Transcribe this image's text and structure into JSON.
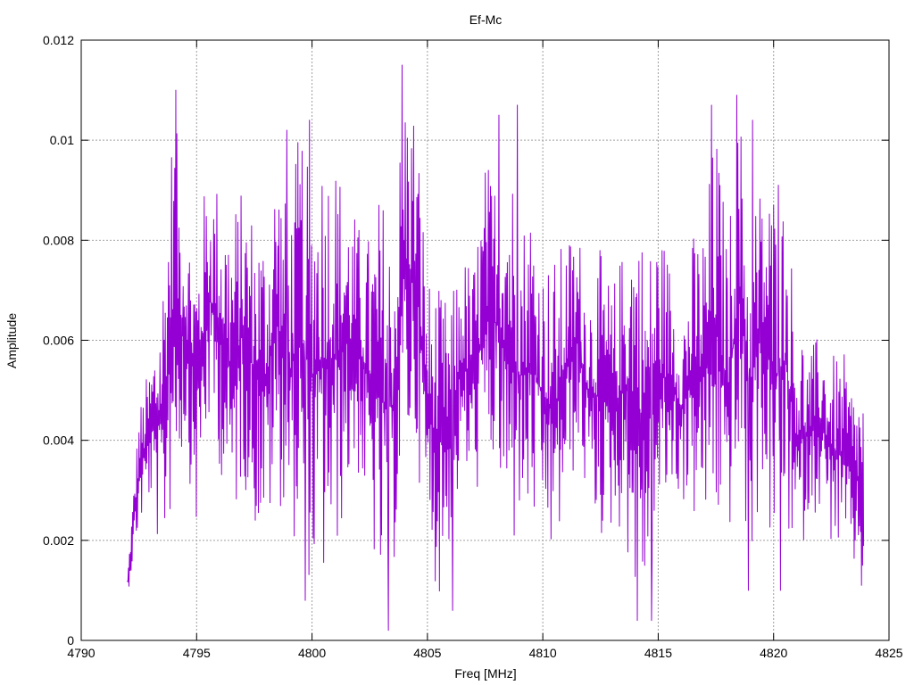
{
  "chart_data": {
    "type": "line",
    "title": "Ef-Mc",
    "xlabel": "Freq [MHz]",
    "ylabel": "Amplitude",
    "xlim": [
      4790,
      4825
    ],
    "ylim": [
      0,
      0.012
    ],
    "xticks": [
      4790,
      4795,
      4800,
      4805,
      4810,
      4815,
      4820,
      4825
    ],
    "xtick_labels": [
      "4790",
      "4795",
      "4800",
      "4805",
      "4810",
      "4815",
      "4820",
      "4825"
    ],
    "yticks": [
      0,
      0.002,
      0.004,
      0.006,
      0.008,
      0.01,
      0.012
    ],
    "ytick_labels": [
      "0",
      "0.002",
      "0.004",
      "0.006",
      "0.008",
      "0.01",
      "0.012"
    ],
    "grid": true,
    "line_color": "#9400d3",
    "series": [
      {
        "x_range": [
          4792.0,
          4823.9
        ],
        "envelope_x": [
          4792.0,
          4792.5,
          4793.0,
          4793.5,
          4794.0,
          4794.5,
          4795.0,
          4795.5,
          4796.0,
          4796.5,
          4797.0,
          4797.5,
          4798.0,
          4798.5,
          4799.0,
          4799.5,
          4800.0,
          4800.5,
          4801.0,
          4801.5,
          4802.0,
          4802.5,
          4803.0,
          4803.5,
          4804.0,
          4804.5,
          4805.0,
          4805.5,
          4806.0,
          4806.5,
          4807.0,
          4807.5,
          4808.0,
          4808.5,
          4809.0,
          4809.5,
          4810.0,
          4810.5,
          4811.0,
          4811.5,
          4812.0,
          4812.5,
          4813.0,
          4813.5,
          4814.0,
          4814.5,
          4815.0,
          4815.5,
          4816.0,
          4816.5,
          4817.0,
          4817.5,
          4818.0,
          4818.5,
          4819.0,
          4819.5,
          4820.0,
          4820.5,
          4821.0,
          4821.5,
          4822.0,
          4822.5,
          4823.0,
          4823.5,
          4823.9
        ],
        "upper": [
          0.0013,
          0.0047,
          0.0057,
          0.0075,
          0.011,
          0.0087,
          0.0081,
          0.0097,
          0.0093,
          0.0089,
          0.0092,
          0.0088,
          0.0085,
          0.0102,
          0.0085,
          0.0108,
          0.0098,
          0.0105,
          0.0101,
          0.0092,
          0.0085,
          0.0083,
          0.0094,
          0.0082,
          0.0115,
          0.011,
          0.0075,
          0.0072,
          0.0069,
          0.0079,
          0.0077,
          0.0098,
          0.0095,
          0.0107,
          0.0085,
          0.0092,
          0.0078,
          0.0079,
          0.0082,
          0.0085,
          0.0073,
          0.008,
          0.0072,
          0.0081,
          0.0093,
          0.0079,
          0.0087,
          0.0078,
          0.0066,
          0.0083,
          0.0086,
          0.0107,
          0.0082,
          0.0109,
          0.0092,
          0.0094,
          0.0095,
          0.009,
          0.007,
          0.0058,
          0.0063,
          0.0058,
          0.0059,
          0.0052,
          0.0053
        ],
        "lower": [
          0.0009,
          0.0021,
          0.0027,
          0.0012,
          0.0026,
          0.0038,
          0.0019,
          0.004,
          0.0033,
          0.0017,
          0.0031,
          0.002,
          0.0018,
          0.0026,
          0.0021,
          0.0014,
          0.0008,
          0.0007,
          0.0012,
          0.0027,
          0.0031,
          0.0019,
          0.0002,
          0.0011,
          0.0033,
          0.0035,
          0.0018,
          0.0006,
          0.0019,
          0.0031,
          0.0027,
          0.003,
          0.0032,
          0.0009,
          0.0021,
          0.0019,
          0.002,
          0.0011,
          0.0026,
          0.0034,
          0.0025,
          0.0018,
          0.002,
          0.002,
          0.0005,
          0.0005,
          0.0018,
          0.0027,
          0.0027,
          0.0022,
          0.002,
          0.0019,
          0.0018,
          0.0027,
          0.001,
          0.0031,
          0.0009,
          0.0022,
          0.001,
          0.0024,
          0.0025,
          0.0018,
          0.0015,
          0.0012,
          0.0011
        ],
        "peaks": [
          [
            4794.1,
            0.011
          ],
          [
            4798.9,
            0.0102
          ],
          [
            4799.9,
            0.0104
          ],
          [
            4803.9,
            0.0115
          ],
          [
            4808.1,
            0.0105
          ],
          [
            4808.9,
            0.0107
          ],
          [
            4817.3,
            0.0107
          ],
          [
            4818.4,
            0.0109
          ],
          [
            4819.1,
            0.0104
          ],
          [
            4820.2,
            0.0091
          ]
        ],
        "troughs": [
          [
            4803.3,
            0.0002
          ],
          [
            4806.1,
            0.0006
          ],
          [
            4814.1,
            0.0004
          ],
          [
            4814.7,
            0.0004
          ],
          [
            4799.7,
            0.0008
          ],
          [
            4818.9,
            0.001
          ],
          [
            4820.3,
            0.001
          ],
          [
            4823.8,
            0.0011
          ]
        ]
      }
    ]
  }
}
